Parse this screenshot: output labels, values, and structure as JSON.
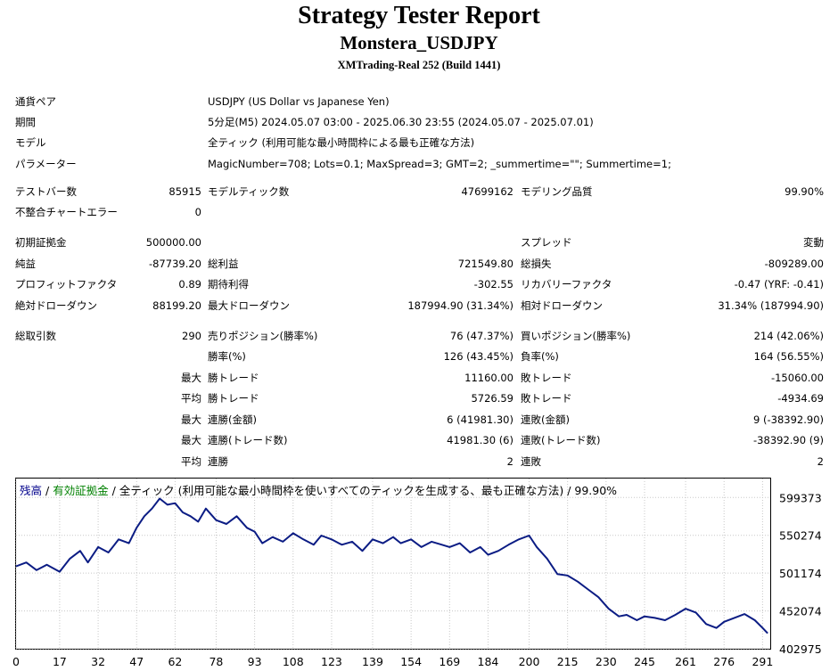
{
  "header": {
    "title": "Strategy Tester Report",
    "ea_name": "Monstera_USDJPY",
    "server": "XMTrading-Real 252 (Build 1441)"
  },
  "info": [
    {
      "label": "通貨ペア",
      "value": "USDJPY (US Dollar vs Japanese Yen)"
    },
    {
      "label": "期間",
      "value": "5分足(M5) 2024.05.07 03:00 - 2025.06.30 23:55 (2024.05.07 - 2025.07.01)"
    },
    {
      "label": "モデル",
      "value": "全ティック (利用可能な最小時間枠による最も正確な方法)"
    },
    {
      "label": "パラメーター",
      "value": "MagicNumber=708; Lots=0.1; MaxSpread=3; GMT=2; _summertime=\"\"; Summertime=1;"
    }
  ],
  "stats": {
    "test_bars_label": "テストバー数",
    "test_bars": "85915",
    "model_ticks_label": "モデルティック数",
    "model_ticks": "47699162",
    "modeling_quality_label": "モデリング品質",
    "modeling_quality": "99.90%",
    "mismatch_label": "不整合チャートエラー",
    "mismatch": "0",
    "initial_deposit_label": "初期証拠金",
    "initial_deposit": "500000.00",
    "spread_label": "スプレッド",
    "spread": "変動",
    "net_profit_label": "純益",
    "net_profit": "-87739.20",
    "gross_profit_label": "総利益",
    "gross_profit": "721549.80",
    "gross_loss_label": "総損失",
    "gross_loss": "-809289.00",
    "profit_factor_label": "プロフィットファクタ",
    "profit_factor": "0.89",
    "expected_payoff_label": "期待利得",
    "expected_payoff": "-302.55",
    "recovery_factor_label": "リカバリーファクタ",
    "recovery_factor": "-0.47 (YRF: -0.41)",
    "abs_drawdown_label": "絶対ドローダウン",
    "abs_drawdown": "88199.20",
    "max_drawdown_label": "最大ドローダウン",
    "max_drawdown": "187994.90 (31.34%)",
    "rel_drawdown_label": "相対ドローダウン",
    "rel_drawdown": "31.34% (187994.90)",
    "total_trades_label": "総取引数",
    "total_trades": "290",
    "short_label": "売りポジション(勝率%)",
    "short": "76 (47.37%)",
    "long_label": "買いポジション(勝率%)",
    "long": "214 (42.06%)",
    "win_label": "勝率(%)",
    "win": "126 (43.45%)",
    "loss_label": "負率(%)",
    "loss": "164 (56.55%)",
    "max_label": "最大",
    "avg_label": "平均",
    "largest_win_label": "勝トレード",
    "largest_win": "11160.00",
    "largest_loss_label": "敗トレード",
    "largest_loss": "-15060.00",
    "avg_win_label": "勝トレード",
    "avg_win": "5726.59",
    "avg_loss_label": "敗トレード",
    "avg_loss": "-4934.69",
    "max_cons_wins_label": "連勝(金額)",
    "max_cons_wins": "6 (41981.30)",
    "max_cons_losses_label": "連敗(金額)",
    "max_cons_losses": "9 (-38392.90)",
    "max_cons_profit_label": "連勝(トレード数)",
    "max_cons_profit": "41981.30 (6)",
    "max_cons_loss_label": "連敗(トレード数)",
    "max_cons_loss": "-38392.90 (9)",
    "avg_cons_wins_label": "連勝",
    "avg_cons_wins": "2",
    "avg_cons_losses_label": "連敗",
    "avg_cons_losses": "2"
  },
  "legend": {
    "balance": "残高",
    "sep1": " / ",
    "equity": "有効証拠金",
    "rest": " / 全ティック (利用可能な最小時間枠を使いすべてのティックを生成する、最も正確な方法) / 99.90%"
  },
  "colors": {
    "line": "#0b1c84",
    "grid": "#c8c8c8",
    "balance": "#00008b",
    "equity": "#008000"
  },
  "chart_data": {
    "type": "line",
    "series": [
      {
        "name": "残高",
        "x": [
          0,
          4,
          8,
          12,
          17,
          21,
          25,
          28,
          32,
          36,
          40,
          44,
          47,
          50,
          53,
          56,
          59,
          62,
          65,
          68,
          71,
          74,
          78,
          82,
          86,
          90,
          93,
          96,
          100,
          104,
          108,
          112,
          116,
          119,
          123,
          127,
          131,
          135,
          139,
          143,
          147,
          150,
          154,
          158,
          162,
          166,
          169,
          173,
          177,
          181,
          184,
          188,
          192,
          196,
          200,
          203,
          207,
          211,
          215,
          219,
          223,
          227,
          231,
          235,
          238,
          242,
          245,
          249,
          253,
          257,
          261,
          265,
          269,
          273,
          276,
          280,
          284,
          288,
          291,
          293
        ],
        "y": [
          510000,
          515000,
          505000,
          512000,
          503000,
          520000,
          530000,
          515000,
          535000,
          528000,
          545000,
          540000,
          560000,
          575000,
          585000,
          598000,
          590000,
          592000,
          580000,
          575000,
          568000,
          585000,
          570000,
          565000,
          575000,
          560000,
          555000,
          540000,
          548000,
          542000,
          553000,
          545000,
          538000,
          550000,
          545000,
          538000,
          542000,
          530000,
          545000,
          540000,
          548000,
          540000,
          545000,
          535000,
          542000,
          538000,
          535000,
          540000,
          528000,
          535000,
          525000,
          530000,
          538000,
          545000,
          550000,
          535000,
          520000,
          500000,
          498000,
          490000,
          480000,
          470000,
          455000,
          445000,
          447000,
          440000,
          445000,
          443000,
          440000,
          447000,
          455000,
          450000,
          435000,
          430000,
          438000,
          443000,
          448000,
          440000,
          430000,
          423000
        ]
      }
    ],
    "xticks": [
      0,
      17,
      32,
      47,
      62,
      78,
      93,
      108,
      123,
      139,
      154,
      169,
      184,
      200,
      215,
      230,
      245,
      261,
      276,
      291
    ],
    "yticks": [
      599373,
      550274,
      501174,
      452074,
      402975
    ],
    "xlim": [
      0,
      294
    ],
    "ylim": [
      403000,
      624000
    ],
    "grid": true
  }
}
